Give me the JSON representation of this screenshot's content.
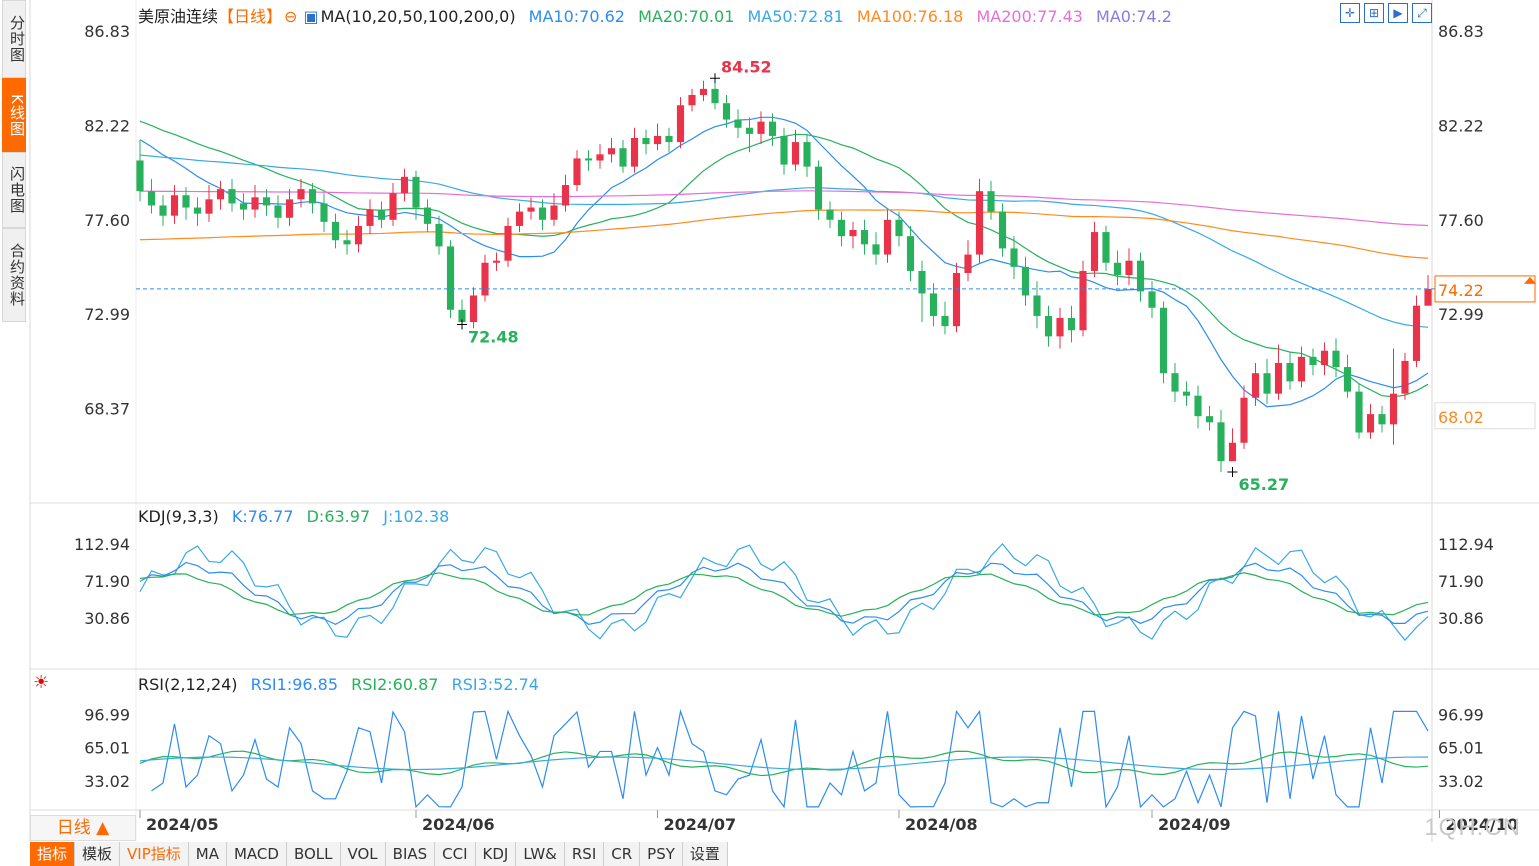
{
  "side_tabs": [
    {
      "label": "分时图",
      "active": false
    },
    {
      "label": "K线图",
      "active": true
    },
    {
      "label": "闪电图",
      "active": false
    },
    {
      "label": "合约资料",
      "active": false
    }
  ],
  "main_legend": {
    "name": "美原油连续",
    "period": "【日线】",
    "ma_label": "MA(10,20,50,100,200,0)",
    "items": [
      {
        "text": "MA10:70.62",
        "color": "#2d8cf0"
      },
      {
        "text": "MA20:70.01",
        "color": "#27b15c"
      },
      {
        "text": "MA50:72.81",
        "color": "#38a9e5"
      },
      {
        "text": "MA100:76.18",
        "color": "#ff8a1e"
      },
      {
        "text": "MA200:77.43",
        "color": "#e86fd6"
      },
      {
        "text": "MA0:74.2",
        "color": "#8a7be0"
      }
    ]
  },
  "kdj_legend": {
    "label": "KDJ(9,3,3)",
    "items": [
      {
        "text": "K:76.77",
        "color": "#2d8cf0"
      },
      {
        "text": "D:63.97",
        "color": "#27b15c"
      },
      {
        "text": "J:102.38",
        "color": "#38a9e5"
      }
    ]
  },
  "rsi_legend": {
    "label": "RSI(2,12,24)",
    "items": [
      {
        "text": "RSI1:96.85",
        "color": "#2d8cf0"
      },
      {
        "text": "RSI2:60.87",
        "color": "#27b15c"
      },
      {
        "text": "RSI3:52.74",
        "color": "#38a9e5"
      }
    ]
  },
  "period_selector": "日线 ▲",
  "bottom_tabs": [
    {
      "label": "指标",
      "active": true
    },
    {
      "label": "模板"
    },
    {
      "label": "VIP指标",
      "vip": true
    },
    {
      "label": "MA"
    },
    {
      "label": "MACD"
    },
    {
      "label": "BOLL"
    },
    {
      "label": "VOL"
    },
    {
      "label": "BIAS"
    },
    {
      "label": "CCI"
    },
    {
      "label": "KDJ"
    },
    {
      "label": "LW&"
    },
    {
      "label": "RSI"
    },
    {
      "label": "CR"
    },
    {
      "label": "PSY"
    },
    {
      "label": "设置"
    }
  ],
  "watermark": "1QH.CN",
  "colors": {
    "up": "#e8334a",
    "down": "#27b15c",
    "ma10": "#2d8cf0",
    "ma20": "#27b15c",
    "ma50": "#38a9e5",
    "ma100": "#ff8a1e",
    "ma200": "#e86fd6",
    "current": "#ff6a00"
  },
  "chart_data": [
    {
      "type": "candlestick",
      "y_ticks": [
        "86.83",
        "82.22",
        "77.60",
        "72.99",
        "68.37"
      ],
      "ylim": [
        65.27,
        86.83
      ],
      "x_ticks": [
        "2024/05",
        "2024/06",
        "2024/07",
        "2024/08",
        "2024/09",
        "2024/10"
      ],
      "annotations": [
        {
          "text": "84.52",
          "value": 84.52
        },
        {
          "text": "72.48",
          "value": 72.48
        },
        {
          "text": "65.27",
          "value": 65.27
        }
      ],
      "current_price": {
        "text": "74.22",
        "value": 74.22
      },
      "extra_label": {
        "text": "68.02",
        "value": 68.02
      },
      "candles": [
        [
          80.5,
          79.0,
          81.5,
          78.5
        ],
        [
          79.0,
          78.3,
          79.6,
          77.9
        ],
        [
          78.3,
          77.8,
          78.8,
          77.3
        ],
        [
          77.8,
          78.8,
          79.3,
          77.4
        ],
        [
          78.8,
          78.2,
          79.2,
          77.6
        ],
        [
          78.2,
          77.9,
          78.7,
          77.3
        ],
        [
          77.9,
          78.6,
          79.3,
          77.5
        ],
        [
          78.6,
          79.1,
          79.5,
          78.1
        ],
        [
          79.1,
          78.4,
          79.6,
          78.0
        ],
        [
          78.4,
          78.1,
          78.9,
          77.6
        ],
        [
          78.1,
          78.7,
          79.3,
          77.7
        ],
        [
          78.7,
          78.3,
          79.1,
          77.8
        ],
        [
          78.3,
          77.7,
          78.8,
          77.2
        ],
        [
          77.7,
          78.6,
          79.1,
          77.3
        ],
        [
          78.6,
          79.1,
          79.6,
          78.2
        ],
        [
          79.1,
          78.4,
          79.4,
          77.9
        ],
        [
          78.4,
          77.5,
          78.9,
          77.0
        ],
        [
          77.5,
          76.6,
          77.9,
          76.2
        ],
        [
          76.6,
          76.4,
          77.1,
          75.9
        ],
        [
          76.4,
          77.3,
          77.8,
          76.0
        ],
        [
          77.3,
          78.1,
          78.6,
          76.9
        ],
        [
          78.1,
          77.6,
          78.5,
          77.2
        ],
        [
          77.6,
          78.9,
          79.4,
          77.3
        ],
        [
          78.9,
          79.7,
          80.1,
          78.5
        ],
        [
          79.7,
          78.2,
          80.0,
          77.6
        ],
        [
          78.2,
          77.4,
          78.6,
          77.0
        ],
        [
          77.4,
          76.3,
          77.8,
          75.9
        ],
        [
          76.3,
          73.2,
          76.6,
          72.8
        ],
        [
          73.2,
          72.6,
          73.7,
          72.48
        ],
        [
          72.6,
          73.9,
          74.3,
          72.3
        ],
        [
          73.9,
          75.5,
          75.9,
          73.6
        ],
        [
          75.5,
          75.6,
          76.0,
          75.1
        ],
        [
          75.6,
          77.3,
          77.7,
          75.3
        ],
        [
          77.3,
          78.0,
          78.4,
          77.0
        ],
        [
          78.0,
          78.2,
          78.7,
          77.6
        ],
        [
          78.2,
          77.6,
          78.6,
          77.1
        ],
        [
          77.6,
          78.3,
          78.9,
          77.3
        ],
        [
          78.3,
          79.3,
          79.8,
          78.0
        ],
        [
          79.3,
          80.6,
          81.0,
          79.0
        ],
        [
          80.6,
          80.5,
          81.0,
          80.0
        ],
        [
          80.5,
          80.8,
          81.3,
          80.1
        ],
        [
          80.8,
          81.1,
          81.6,
          80.4
        ],
        [
          81.1,
          80.2,
          81.5,
          79.9
        ],
        [
          80.2,
          81.6,
          82.1,
          79.9
        ],
        [
          81.6,
          81.3,
          82.0,
          80.8
        ],
        [
          81.3,
          81.7,
          82.3,
          81.0
        ],
        [
          81.7,
          81.4,
          82.1,
          80.9
        ],
        [
          81.4,
          83.2,
          83.6,
          81.1
        ],
        [
          83.2,
          83.7,
          84.0,
          82.9
        ],
        [
          83.7,
          84.0,
          84.4,
          83.4
        ],
        [
          84.0,
          83.3,
          84.52,
          83.0
        ],
        [
          83.3,
          82.5,
          83.7,
          82.1
        ],
        [
          82.5,
          82.1,
          83.0,
          81.6
        ],
        [
          82.1,
          81.8,
          82.6,
          80.9
        ],
        [
          81.8,
          82.4,
          82.9,
          81.3
        ],
        [
          82.4,
          81.7,
          82.8,
          81.2
        ],
        [
          81.7,
          80.3,
          82.1,
          79.8
        ],
        [
          80.3,
          81.4,
          82.0,
          80.0
        ],
        [
          81.4,
          80.2,
          81.8,
          79.7
        ],
        [
          80.2,
          78.1,
          80.5,
          77.6
        ],
        [
          78.1,
          77.6,
          78.5,
          77.2
        ],
        [
          77.6,
          76.8,
          78.0,
          76.3
        ],
        [
          76.8,
          77.1,
          77.5,
          76.2
        ],
        [
          77.1,
          76.4,
          77.6,
          75.9
        ],
        [
          76.4,
          75.9,
          77.0,
          75.4
        ],
        [
          75.9,
          77.6,
          78.1,
          75.5
        ],
        [
          77.6,
          76.8,
          78.0,
          76.3
        ],
        [
          76.8,
          75.1,
          77.3,
          74.6
        ],
        [
          75.1,
          74.0,
          75.6,
          72.6
        ],
        [
          74.0,
          72.9,
          74.5,
          72.4
        ],
        [
          72.9,
          72.4,
          73.6,
          72.0
        ],
        [
          72.4,
          75.0,
          75.5,
          72.1
        ],
        [
          75.0,
          75.9,
          76.6,
          74.6
        ],
        [
          75.9,
          79.0,
          79.6,
          75.5
        ],
        [
          79.0,
          78.0,
          79.5,
          77.6
        ],
        [
          78.0,
          76.2,
          78.4,
          75.8
        ],
        [
          76.2,
          75.3,
          76.8,
          74.7
        ],
        [
          75.3,
          73.9,
          75.8,
          73.4
        ],
        [
          73.9,
          72.9,
          74.6,
          72.3
        ],
        [
          72.9,
          71.9,
          73.4,
          71.4
        ],
        [
          71.9,
          72.8,
          73.3,
          71.3
        ],
        [
          72.8,
          72.2,
          73.4,
          71.6
        ],
        [
          72.2,
          75.1,
          75.6,
          71.9
        ],
        [
          75.1,
          77.0,
          77.5,
          74.8
        ],
        [
          77.0,
          75.5,
          77.3,
          75.1
        ],
        [
          75.5,
          74.9,
          76.1,
          74.4
        ],
        [
          74.9,
          75.6,
          76.2,
          74.4
        ],
        [
          75.6,
          74.1,
          76.0,
          73.6
        ],
        [
          74.1,
          73.3,
          74.6,
          72.8
        ],
        [
          73.3,
          70.1,
          73.6,
          69.6
        ],
        [
          70.1,
          69.2,
          70.6,
          68.7
        ],
        [
          69.2,
          69.0,
          69.7,
          68.5
        ],
        [
          69.0,
          68.0,
          69.5,
          67.4
        ],
        [
          68.0,
          67.7,
          68.5,
          67.3
        ],
        [
          67.7,
          65.8,
          68.3,
          65.27
        ],
        [
          65.8,
          66.7,
          67.4,
          66.2
        ],
        [
          66.7,
          68.9,
          69.5,
          66.4
        ],
        [
          68.9,
          70.1,
          70.6,
          68.5
        ],
        [
          70.1,
          69.1,
          70.8,
          68.6
        ],
        [
          69.1,
          70.6,
          71.5,
          68.8
        ],
        [
          70.6,
          69.7,
          71.1,
          69.3
        ],
        [
          69.7,
          70.9,
          71.4,
          69.4
        ],
        [
          70.9,
          70.5,
          71.3,
          70.0
        ],
        [
          70.5,
          71.2,
          71.6,
          70.0
        ],
        [
          71.2,
          70.4,
          71.8,
          69.9
        ],
        [
          70.4,
          69.2,
          71.0,
          68.9
        ],
        [
          69.2,
          67.2,
          69.6,
          66.9
        ],
        [
          67.2,
          68.1,
          68.6,
          66.9
        ],
        [
          68.1,
          67.6,
          68.5,
          67.2
        ],
        [
          67.6,
          69.1,
          71.3,
          66.6
        ],
        [
          69.1,
          70.7,
          71.1,
          68.8
        ],
        [
          70.7,
          73.4,
          73.9,
          70.4
        ],
        [
          73.4,
          74.22,
          74.9,
          73.9
        ]
      ]
    },
    {
      "type": "line",
      "name": "KDJ",
      "y_ticks": [
        "112.94",
        "71.90",
        "30.86"
      ],
      "ylim": [
        0,
        125
      ]
    },
    {
      "type": "line",
      "name": "RSI",
      "y_ticks": [
        "96.99",
        "65.01",
        "33.02"
      ],
      "ylim": [
        5,
        110
      ]
    }
  ]
}
